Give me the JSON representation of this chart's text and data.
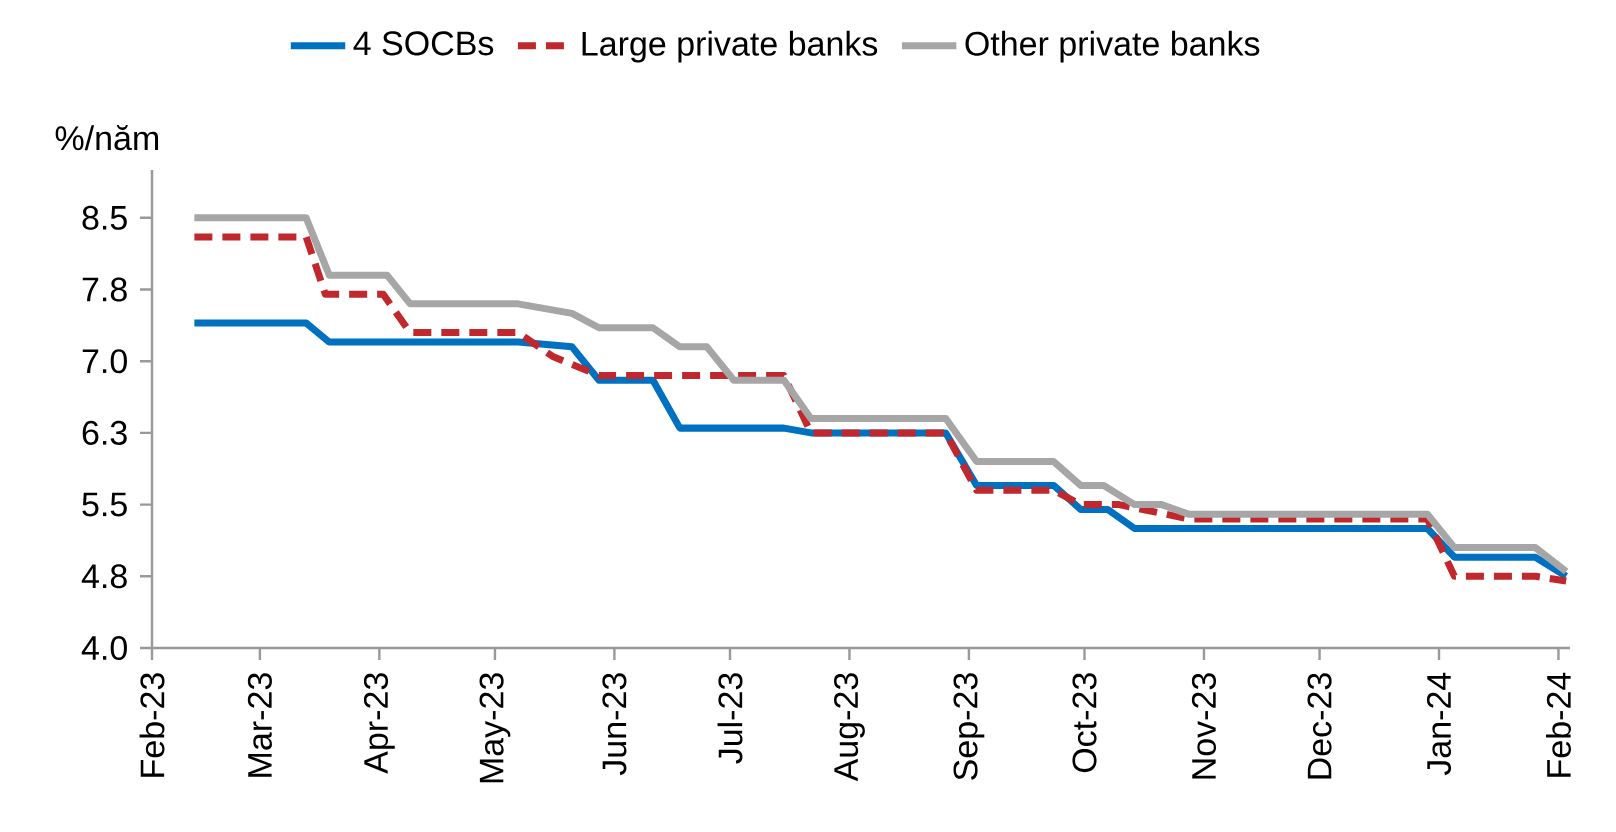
{
  "chart_data": {
    "type": "line",
    "ylabel": "%/năm",
    "legend": "top",
    "xlim": [
      "2023-02-01",
      "2024-02-04"
    ],
    "xticks": [
      {
        "value": "2023-02-01",
        "label": "Feb-23"
      },
      {
        "value": "2023-03-01",
        "label": "Mar-23"
      },
      {
        "value": "2023-04-01",
        "label": "Apr-23"
      },
      {
        "value": "2023-05-01",
        "label": "May-23"
      },
      {
        "value": "2023-06-01",
        "label": "Jun-23"
      },
      {
        "value": "2023-07-01",
        "label": "Jul-23"
      },
      {
        "value": "2023-08-01",
        "label": "Aug-23"
      },
      {
        "value": "2023-09-01",
        "label": "Sep-23"
      },
      {
        "value": "2023-10-01",
        "label": "Oct-23"
      },
      {
        "value": "2023-11-01",
        "label": "Nov-23"
      },
      {
        "value": "2023-12-01",
        "label": "Dec-23"
      },
      {
        "value": "2024-01-01",
        "label": "Jan-24"
      },
      {
        "value": "2024-02-01",
        "label": "Feb-24"
      }
    ],
    "ylim": [
      4,
      9
    ],
    "yticks": [
      {
        "value": 4,
        "label": "4.0"
      },
      {
        "value": 4.75,
        "label": "4.8"
      },
      5.5,
      {
        "value": 6.25,
        "label": "6.3"
      },
      {
        "value": 7,
        "label": "7.0"
      },
      {
        "value": 7.75,
        "label": "7.8"
      },
      8.5
    ],
    "series": [
      {
        "name": "4 SOCBs",
        "color": "#0070c0",
        "line_style": "solid",
        "x": [
          "2023-02-12",
          "2023-03-13",
          "2023-03-19",
          "2023-05-07",
          "2023-05-21",
          "2023-05-28",
          "2023-06-11",
          "2023-06-18",
          "2023-07-15",
          "2023-07-22",
          "2023-08-26",
          "2023-09-03",
          "2023-09-23",
          "2023-09-30",
          "2023-10-07",
          "2023-10-14",
          "2023-12-29",
          "2024-01-05",
          "2024-01-26",
          "2024-02-03"
        ],
        "values": [
          7.4,
          7.4,
          7.2,
          7.2,
          7.15,
          6.8,
          6.8,
          6.3,
          6.3,
          6.25,
          6.25,
          5.7,
          5.7,
          5.45,
          5.45,
          5.25,
          5.25,
          4.95,
          4.95,
          4.75
        ]
      },
      {
        "name": "Large private banks",
        "color": "#c0282d",
        "line_style": "dashed",
        "x": [
          "2023-02-12",
          "2023-03-13",
          "2023-03-18",
          "2023-04-02",
          "2023-04-09",
          "2023-05-07",
          "2023-05-16",
          "2023-05-28",
          "2023-07-15",
          "2023-07-22",
          "2023-08-26",
          "2023-09-03",
          "2023-09-23",
          "2023-09-30",
          "2023-10-10",
          "2023-10-28",
          "2023-12-29",
          "2024-01-05",
          "2024-01-26",
          "2024-02-03"
        ],
        "values": [
          8.3,
          8.3,
          7.7,
          7.7,
          7.3,
          7.3,
          7.05,
          6.85,
          6.85,
          6.25,
          6.25,
          5.65,
          5.65,
          5.5,
          5.5,
          5.35,
          5.35,
          4.75,
          4.75,
          4.7
        ]
      },
      {
        "name": "Other private banks",
        "color": "#a6a6a6",
        "line_style": "solid",
        "x": [
          "2023-02-12",
          "2023-03-13",
          "2023-03-19",
          "2023-04-03",
          "2023-04-09",
          "2023-05-07",
          "2023-05-21",
          "2023-05-28",
          "2023-06-11",
          "2023-06-18",
          "2023-06-25",
          "2023-07-02",
          "2023-07-15",
          "2023-07-22",
          "2023-08-26",
          "2023-09-03",
          "2023-09-23",
          "2023-09-30",
          "2023-10-06",
          "2023-10-14",
          "2023-10-21",
          "2023-10-28",
          "2023-12-29",
          "2024-01-05",
          "2024-01-26",
          "2024-02-03"
        ],
        "values": [
          8.5,
          8.5,
          7.9,
          7.9,
          7.6,
          7.6,
          7.5,
          7.35,
          7.35,
          7.15,
          7.15,
          6.8,
          6.8,
          6.4,
          6.4,
          5.95,
          5.95,
          5.7,
          5.7,
          5.5,
          5.5,
          5.4,
          5.4,
          5.05,
          5.05,
          4.8
        ]
      }
    ]
  }
}
